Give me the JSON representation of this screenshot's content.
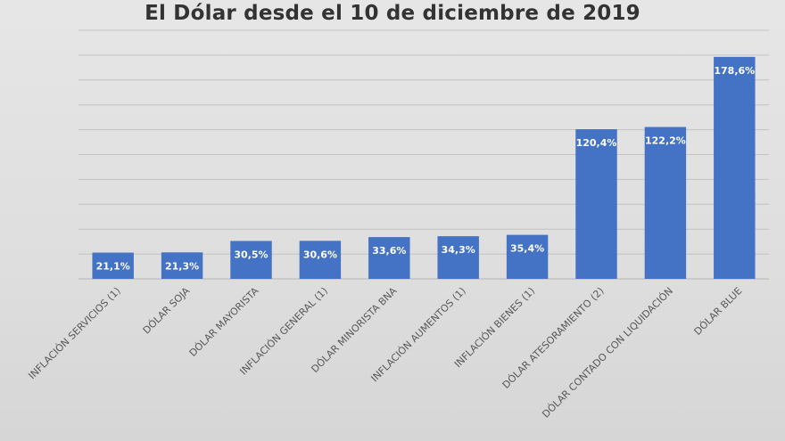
{
  "chart_data": {
    "type": "bar",
    "title": "El Dólar desde el 10 de diciembre de 2019",
    "xlabel": "",
    "ylabel": "",
    "ylim": [
      0,
      200
    ],
    "grid": true,
    "categories": [
      "INFLACIÓN SERVICIOS (1)",
      "DÓLAR SOJA",
      "DÓLAR MAYORISTA",
      "INFLACIÓN GENERAL (1)",
      "DÓLAR MINORISTA BNA",
      "INFLACIÓN AUMENTOS (1)",
      "INFLACIÓN BIENES (1)",
      "DÓLAR ATESORAMIENTO (2)",
      "DÓLAR CONTADO CON LIQUIDACIÓN",
      "DÓLAR BLUE"
    ],
    "values": [
      21.1,
      21.3,
      30.5,
      30.6,
      33.6,
      34.3,
      35.4,
      120.4,
      122.2,
      178.6
    ],
    "data_labels": [
      "21,1%",
      "21,3%",
      "30,5%",
      "30,6%",
      "33,6%",
      "34,3%",
      "35,4%",
      "120,4%",
      "122,2%",
      "178,6%"
    ],
    "colors": {
      "bar": "#4472c4",
      "grid": "#c2c2c2"
    }
  }
}
